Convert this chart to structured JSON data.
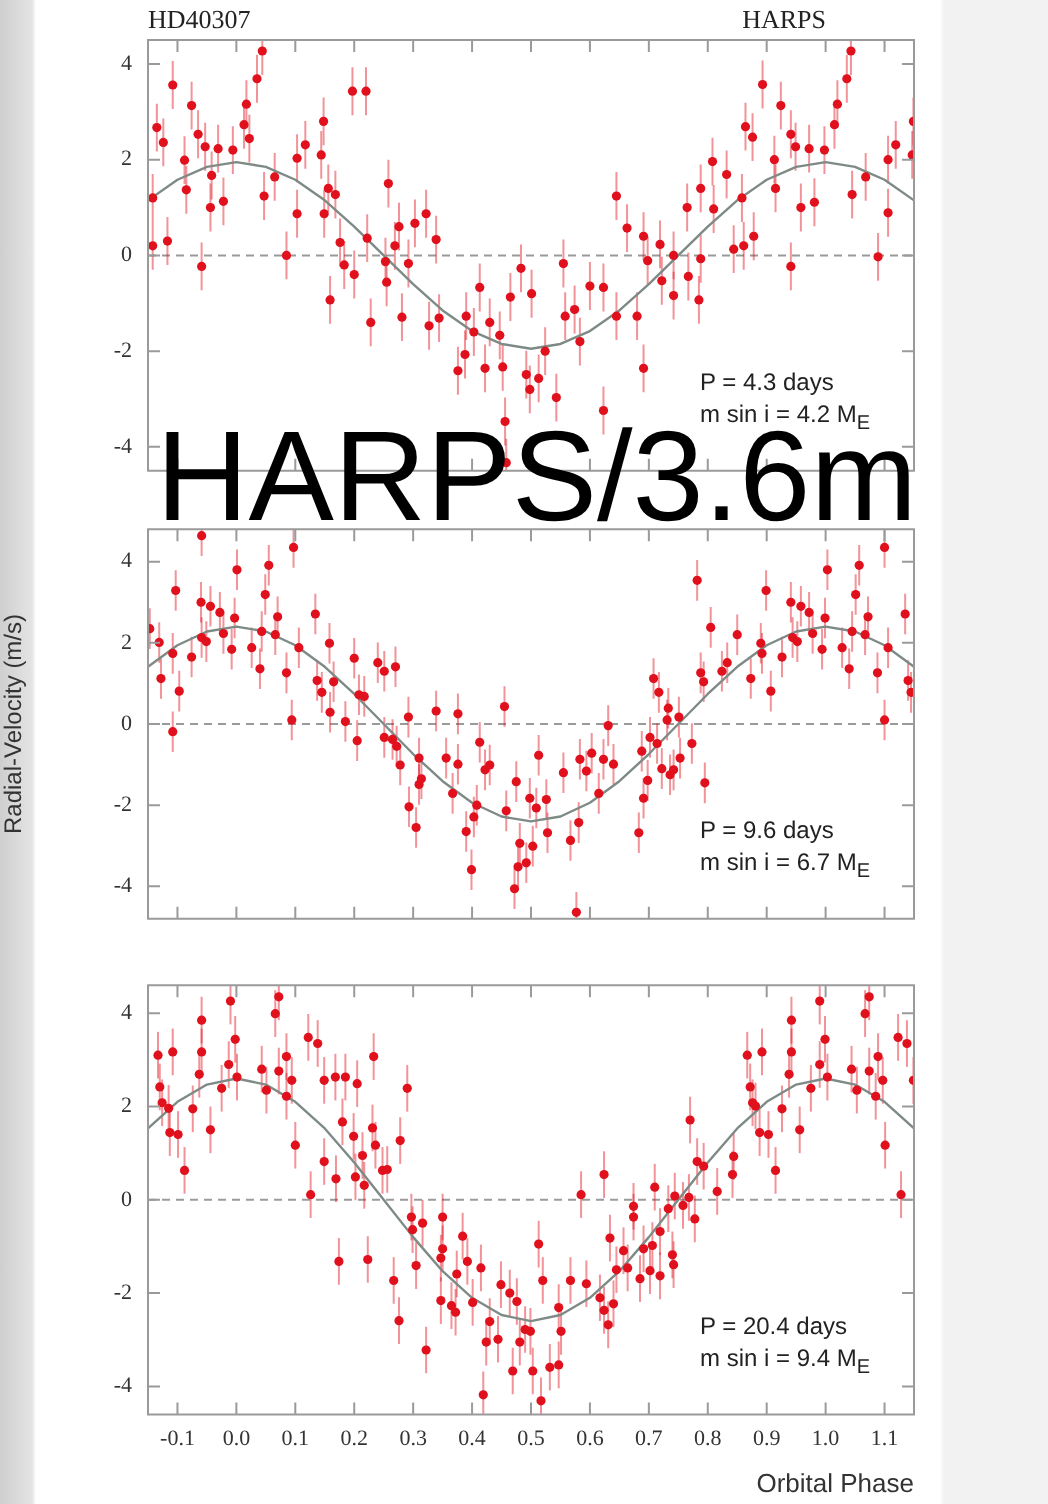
{
  "chart_data": [
    {
      "type": "scatter",
      "title": "HD40307",
      "subtitle": "HARPS",
      "annotations": [
        "P = 4.3 days",
        "m sin i = 4.2 M$_{E}$"
      ],
      "xlim": [
        -0.15,
        1.15
      ],
      "ylim": [
        -4.5,
        4.5
      ],
      "xticks": [
        -0.1,
        0,
        0.1,
        0.2,
        0.3,
        0.4,
        0.5,
        0.6,
        0.7,
        0.8,
        0.9,
        1,
        1.1
      ],
      "yticks": [
        -4,
        -2,
        0,
        2,
        4
      ],
      "tick_labels": "y",
      "ref_lines": [
        {
          "axis": "y",
          "value": 0,
          "color": "#9a9a9a",
          "line_style": "dashed"
        }
      ],
      "series": [
        {
          "type": "scatter",
          "color": "#e0101c",
          "marker": "circle",
          "x": [
            -0.142,
            -0.142,
            -0.135,
            -0.124,
            -0.117,
            -0.108,
            -0.088,
            -0.085,
            -0.076,
            -0.065,
            -0.059,
            -0.053,
            -0.044,
            -0.042,
            -0.031,
            -0.022,
            -0.006,
            0.013,
            0.017,
            0.022,
            0.035,
            0.044,
            0.047,
            0.065,
            0.085,
            0.103,
            0.103,
            0.117,
            0.144,
            0.148,
            0.149,
            0.156,
            0.159,
            0.168,
            0.176,
            0.183,
            0.197,
            0.2,
            0.22,
            0.222,
            0.228,
            0.253,
            0.255,
            0.258,
            0.269,
            0.276,
            0.281,
            0.292,
            0.303,
            0.322,
            0.327,
            0.339,
            0.344,
            0.376,
            0.388,
            0.39,
            0.403,
            0.413,
            0.422,
            0.43,
            0.447,
            0.452,
            0.456,
            0.458,
            0.465,
            0.483,
            0.492,
            0.498,
            0.501,
            0.513,
            0.524,
            0.543,
            0.555,
            0.558,
            0.574,
            0.583,
            0.6,
            0.623,
            0.623,
            0.645,
            0.645,
            0.663,
            0.68,
            0.691,
            0.691,
            0.698,
            0.719,
            0.722,
            0.742,
            0.742,
            0.765,
            0.767,
            0.785,
            0.788,
            0.788,
            0.808,
            0.81,
            0.832,
            0.844,
            0.858,
            0.861,
            0.864,
            0.876,
            0.878,
            0.893,
            0.913,
            0.915,
            0.924,
            0.941,
            0.941,
            0.949,
            0.958,
            0.972,
            0.981,
            0.998,
            1.015,
            1.02,
            1.036,
            1.043,
            1.045,
            1.068,
            1.089,
            1.106,
            1.106,
            1.119,
            1.147,
            1.149
          ],
          "values": [
            1.2,
            0.2,
            2.67,
            2.36,
            0.3,
            3.56,
            1.99,
            1.37,
            3.13,
            2.53,
            -0.23,
            2.27,
            1.0,
            1.67,
            2.23,
            1.13,
            2.2,
            2.73,
            3.16,
            2.44,
            3.69,
            4.27,
            1.24,
            1.64,
            0,
            0.87,
            2.03,
            2.31,
            2.1,
            2.8,
            0.87,
            1.4,
            -0.93,
            1.27,
            0.27,
            -0.2,
            3.43,
            -0.4,
            3.43,
            0.36,
            -1.4,
            -0.13,
            -0.56,
            1.5,
            0.2,
            0.6,
            -1.29,
            -0.17,
            0.67,
            0.87,
            -1.47,
            0.33,
            -1.31,
            -2.41,
            -2.07,
            -1.27,
            -1.6,
            -0.67,
            -2.36,
            -1.4,
            -1.67,
            -2.33,
            -3.47,
            -4.33,
            -0.87,
            -0.27,
            -2.49,
            -2.8,
            -0.8,
            -2.57,
            -2.0,
            -2.97,
            -0.17,
            -1.27,
            -1.13,
            -1.8,
            -0.64,
            -3.24,
            -0.67,
            -1.27,
            1.24,
            0.57,
            -1.27,
            -2.36,
            0.4,
            -0.11,
            0.23,
            -0.53,
            -0.84,
            0,
            1.0,
            -0.44,
            -0.93,
            1.4,
            -0.07,
            1.96,
            0.97,
            1.69,
            0.13,
            1.2,
            0.2,
            2.69,
            2.47,
            0.4,
            3.57,
            2.0,
            1.4,
            3.13,
            -0.23,
            2.53,
            2.27,
            1.0,
            2.23,
            1.11,
            2.2,
            2.73,
            3.16,
            3.69,
            4.27,
            1.27,
            1.64,
            -0.03,
            0.89,
            2.0,
            2.31,
            2.1,
            2.8
          ],
          "errors": [
            0.5,
            0.5,
            0.5,
            0.5,
            0.5,
            0.5,
            0.5,
            0.5,
            0.5,
            0.5,
            0.5,
            0.5,
            0.5,
            0.5,
            0.5,
            0.5,
            0.5,
            0.5,
            0.5,
            0.5,
            0.5,
            0.5,
            0.5,
            0.5,
            0.5,
            0.5,
            0.5,
            0.5,
            0.5,
            0.5,
            0.5,
            0.5,
            0.5,
            0.5,
            0.5,
            0.5,
            0.5,
            0.5,
            0.5,
            0.5,
            0.5,
            0.5,
            0.5,
            0.5,
            0.5,
            0.5,
            0.5,
            0.5,
            0.5,
            0.5,
            0.5,
            0.5,
            0.5,
            0.5,
            0.5,
            0.5,
            0.5,
            0.5,
            0.5,
            0.5,
            0.5,
            0.5,
            0.5,
            0.5,
            0.5,
            0.5,
            0.5,
            0.5,
            0.5,
            0.5,
            0.5,
            0.5,
            0.5,
            0.5,
            0.5,
            0.5,
            0.5,
            0.5,
            0.5,
            0.5,
            0.5,
            0.5,
            0.5,
            0.5,
            0.5,
            0.5,
            0.5,
            0.5,
            0.5,
            0.5,
            0.5,
            0.5,
            0.5,
            0.5,
            0.5,
            0.5,
            0.5,
            0.5,
            0.5,
            0.5,
            0.5,
            0.5,
            0.5,
            0.5,
            0.5,
            0.5,
            0.5,
            0.5,
            0.5,
            0.5,
            0.5,
            0.5,
            0.5,
            0.5,
            0.5,
            0.5,
            0.5,
            0.5,
            0.5,
            0.5,
            0.5,
            0.5,
            0.5,
            0.5,
            0.5,
            0.5,
            0.5
          ]
        },
        {
          "type": "line",
          "color": "#7d8a86",
          "x": [
            -0.15,
            -0.1,
            -0.05,
            0,
            0.05,
            0.1,
            0.15,
            0.2,
            0.25,
            0.3,
            0.35,
            0.4,
            0.45,
            0.5,
            0.55,
            0.6,
            0.65,
            0.7,
            0.75,
            0.8,
            0.85,
            0.9,
            0.95,
            1,
            1.05,
            1.1,
            1.15
          ],
          "values": [
            1.15,
            1.58,
            1.85,
            1.95,
            1.85,
            1.58,
            1.15,
            0.6,
            0,
            -0.6,
            -1.15,
            -1.58,
            -1.85,
            -1.95,
            -1.85,
            -1.58,
            -1.15,
            -0.6,
            0,
            0.6,
            1.15,
            1.58,
            1.85,
            1.95,
            1.85,
            1.58,
            1.15
          ]
        }
      ]
    },
    {
      "type": "scatter",
      "title": "HARPS/3.6m",
      "ylabel": "Radial-Velocity (m/s)",
      "annotations": [
        "P = 9.6 days",
        "m sin i = 6.7 M$_{E}$"
      ],
      "xlim": [
        -0.15,
        1.15
      ],
      "ylim": [
        -4.8,
        4.8
      ],
      "xticks": [
        -0.1,
        0,
        0.1,
        0.2,
        0.3,
        0.4,
        0.5,
        0.6,
        0.7,
        0.8,
        0.9,
        1,
        1.1
      ],
      "yticks": [
        -4,
        -2,
        0,
        2,
        4
      ],
      "tick_labels": "y",
      "ref_lines": [
        {
          "axis": "y",
          "value": 0,
          "color": "#9a9a9a",
          "line_style": "dashed"
        }
      ],
      "series": [
        {
          "type": "scatter",
          "color": "#e0101c",
          "marker": "circle",
          "x": [
            -0.147,
            -0.131,
            -0.128,
            -0.108,
            -0.108,
            -0.103,
            -0.097,
            -0.076,
            -0.06,
            -0.059,
            -0.059,
            -0.051,
            -0.044,
            -0.028,
            -0.022,
            -0.008,
            -0.003,
            0.001,
            0.026,
            0.04,
            0.043,
            0.049,
            0.055,
            0.066,
            0.07,
            0.085,
            0.094,
            0.097,
            0.106,
            0.134,
            0.137,
            0.145,
            0.158,
            0.159,
            0.165,
            0.185,
            0.2,
            0.205,
            0.208,
            0.217,
            0.24,
            0.251,
            0.251,
            0.265,
            0.27,
            0.272,
            0.278,
            0.292,
            0.293,
            0.305,
            0.31,
            0.31,
            0.314,
            0.339,
            0.356,
            0.367,
            0.376,
            0.376,
            0.39,
            0.399,
            0.403,
            0.408,
            0.413,
            0.422,
            0.43,
            0.455,
            0.458,
            0.472,
            0.475,
            0.478,
            0.481,
            0.492,
            0.498,
            0.503,
            0.509,
            0.513,
            0.526,
            0.528,
            0.555,
            0.567,
            0.577,
            0.581,
            0.583,
            0.594,
            0.603,
            0.615,
            0.623,
            0.631,
            0.64,
            0.683,
            0.688,
            0.691,
            0.698,
            0.702,
            0.708,
            0.714,
            0.717,
            0.722,
            0.731,
            0.733,
            0.736,
            0.742,
            0.751,
            0.753,
            0.773,
            0.782,
            0.788,
            0.793,
            0.795,
            0.805,
            0.824,
            0.833,
            0.85,
            0.873,
            0.89,
            0.892,
            0.899,
            0.907,
            0.926,
            0.941,
            0.944,
            0.952,
            0.958,
            0.972,
            0.978,
            0.994,
            0.999,
            1.003,
            1.028,
            1.04,
            1.045,
            1.051,
            1.057,
            1.067,
            1.072,
            1.088,
            1.1,
            1.1,
            1.106,
            1.135,
            1.14,
            1.145
          ],
          "values": [
            2.35,
            2.01,
            1.12,
            -0.19,
            1.74,
            3.29,
            0.81,
            1.65,
            3.0,
            4.64,
            2.13,
            2.03,
            2.9,
            2.75,
            2.23,
            1.84,
            2.61,
            3.8,
            1.88,
            1.36,
            2.28,
            3.19,
            3.91,
            2.2,
            2.64,
            1.26,
            0.1,
            4.35,
            1.88,
            2.71,
            1.07,
            0.78,
            1.99,
            0.29,
            1.04,
            0.06,
            1.62,
            -0.41,
            0.72,
            0.68,
            1.51,
            1.3,
            -0.33,
            -0.38,
            1.41,
            -0.55,
            -1.01,
            0.17,
            -2.04,
            -2.55,
            -0.84,
            -1.49,
            -1.35,
            0.32,
            -0.84,
            -1.71,
            0.25,
            -0.99,
            -2.65,
            -3.59,
            -2.29,
            -2.0,
            -0.45,
            -1.13,
            -1.01,
            0.43,
            -2.14,
            -4.06,
            -1.42,
            -3.52,
            -2.94,
            -3.42,
            -1.83,
            -3.01,
            -2.07,
            -0.77,
            -1.86,
            -2.68,
            -1.2,
            -2.87,
            -4.64,
            -2.43,
            -0.87,
            -1.16,
            -0.72,
            -1.71,
            -0.87,
            -0.04,
            -0.99,
            -2.68,
            -0.67,
            -1.83,
            -1.39,
            -0.33,
            1.12,
            -0.48,
            0.78,
            -1.1,
            0.1,
            0.39,
            -1.25,
            -1.13,
            0.17,
            -0.84,
            -0.48,
            3.54,
            1.26,
            1.04,
            -1.45,
            2.38,
            1.3,
            1.51,
            2.2,
            1.12,
            1.99,
            1.74,
            3.29,
            0.81,
            1.65,
            3.0,
            2.13,
            2.03,
            2.9,
            2.75,
            2.23,
            1.84,
            2.61,
            3.8,
            1.88,
            1.36,
            2.28,
            3.19,
            3.91,
            2.2,
            2.64,
            1.26,
            0.1,
            4.35,
            1.88,
            2.71,
            1.07,
            0.78
          ],
          "errors": [
            0.5,
            0.5,
            0.5,
            0.5,
            0.5,
            0.5,
            0.5,
            0.5,
            0.5,
            0.5,
            0.5,
            0.5,
            0.5,
            0.5,
            0.5,
            0.5,
            0.5,
            0.5,
            0.5,
            0.5,
            0.5,
            0.5,
            0.5,
            0.5,
            0.5,
            0.5,
            0.5,
            0.5,
            0.5,
            0.5,
            0.5,
            0.5,
            0.5,
            0.5,
            0.5,
            0.5,
            0.5,
            0.5,
            0.5,
            0.5,
            0.5,
            0.5,
            0.5,
            0.5,
            0.5,
            0.5,
            0.5,
            0.5,
            0.5,
            0.5,
            0.5,
            0.5,
            0.5,
            0.5,
            0.5,
            0.5,
            0.5,
            0.5,
            0.5,
            0.5,
            0.5,
            0.5,
            0.5,
            0.5,
            0.5,
            0.5,
            0.5,
            0.5,
            0.5,
            0.5,
            0.5,
            0.5,
            0.5,
            0.5,
            0.5,
            0.5,
            0.5,
            0.5,
            0.5,
            0.5,
            0.5,
            0.5,
            0.5,
            0.5,
            0.5,
            0.5,
            0.5,
            0.5,
            0.5,
            0.5,
            0.5,
            0.5,
            0.5,
            0.5,
            0.5,
            0.5,
            0.5,
            0.5,
            0.5,
            0.5,
            0.5,
            0.5,
            0.5,
            0.5,
            0.5,
            0.5,
            0.5,
            0.5,
            0.5,
            0.5,
            0.5,
            0.5,
            0.5,
            0.5,
            0.5,
            0.5,
            0.5,
            0.5,
            0.5,
            0.5,
            0.5,
            0.5,
            0.5,
            0.5,
            0.5,
            0.5,
            0.5,
            0.5,
            0.5,
            0.5,
            0.5,
            0.5,
            0.5,
            0.5,
            0.5,
            0.5,
            0.5,
            0.5,
            0.5,
            0.5,
            0.5,
            0.5
          ]
        },
        {
          "type": "line",
          "color": "#7d8a86",
          "x": [
            -0.15,
            -0.1,
            -0.05,
            0,
            0.05,
            0.1,
            0.15,
            0.2,
            0.25,
            0.3,
            0.35,
            0.4,
            0.45,
            0.5,
            0.55,
            0.6,
            0.65,
            0.7,
            0.75,
            0.8,
            0.85,
            0.9,
            0.95,
            1,
            1.05,
            1.1,
            1.15
          ],
          "values": [
            1.41,
            1.94,
            2.28,
            2.4,
            2.28,
            1.94,
            1.41,
            0.74,
            0,
            -0.74,
            -1.41,
            -1.94,
            -2.28,
            -2.4,
            -2.28,
            -1.94,
            -1.41,
            -0.74,
            0,
            0.74,
            1.41,
            1.94,
            2.28,
            2.4,
            2.28,
            1.94,
            1.41
          ]
        }
      ]
    },
    {
      "type": "scatter",
      "xlabel": "Orbital Phase",
      "annotations": [
        "P = 20.4 days",
        "m sin i = 9.4 M$_{E}$"
      ],
      "xlim": [
        -0.15,
        1.15
      ],
      "ylim": [
        -4.6,
        4.6
      ],
      "xticks": [
        -0.1,
        {
          "value": 0,
          "label": "0.0"
        },
        0.1,
        0.2,
        0.3,
        0.4,
        0.5,
        0.6,
        0.7,
        0.8,
        0.9,
        {
          "value": 1,
          "label": "1.0"
        },
        1.1
      ],
      "yticks": [
        -4,
        -2,
        0,
        2,
        4
      ],
      "ref_lines": [
        {
          "axis": "y",
          "value": 0,
          "color": "#9a9a9a",
          "line_style": "dashed"
        }
      ],
      "series": [
        {
          "type": "scatter",
          "color": "#e0101c",
          "marker": "circle",
          "x": [
            -0.133,
            -0.13,
            -0.126,
            -0.115,
            -0.113,
            -0.108,
            -0.099,
            -0.088,
            -0.074,
            -0.063,
            -0.059,
            -0.059,
            -0.044,
            -0.025,
            -0.013,
            -0.01,
            -0.002,
            0.001,
            0.043,
            0.051,
            0.066,
            0.072,
            0.072,
            0.085,
            0.085,
            0.094,
            0.1,
            0.122,
            0.126,
            0.138,
            0.149,
            0.149,
            0.168,
            0.169,
            0.174,
            0.18,
            0.185,
            0.199,
            0.202,
            0.205,
            0.214,
            0.217,
            0.223,
            0.231,
            0.233,
            0.236,
            0.248,
            0.256,
            0.267,
            0.276,
            0.278,
            0.29,
            0.297,
            0.299,
            0.305,
            0.316,
            0.322,
            0.347,
            0.347,
            0.35,
            0.35,
            0.365,
            0.372,
            0.374,
            0.384,
            0.392,
            0.401,
            0.415,
            0.419,
            0.424,
            0.43,
            0.444,
            0.449,
            0.464,
            0.469,
            0.476,
            0.481,
            0.49,
            0.499,
            0.503,
            0.513,
            0.517,
            0.52,
            0.532,
            0.547,
            0.547,
            0.551,
            0.567,
            0.585,
            0.594,
            0.617,
            0.624,
            0.624,
            0.631,
            0.634,
            0.64,
            0.645,
            0.657,
            0.664,
            0.674,
            0.674,
            0.685,
            0.691,
            0.702,
            0.706,
            0.71,
            0.719,
            0.719,
            0.733,
            0.74,
            0.742,
            0.744,
            0.758,
            0.768,
            0.77,
            0.778,
            0.782,
            0.793,
            0.816,
            0.842,
            0.844,
            0.867,
            0.872,
            0.876,
            0.881,
            0.888,
            0.892,
            0.903,
            0.915,
            0.926,
            0.938,
            0.942,
            0.942,
            0.956,
            0.975,
            0.99,
            0.99,
            0.999,
            1.003,
            1.044,
            1.053,
            1.067,
            1.074,
            1.074,
            1.085,
            1.089,
            1.097,
            1.101,
            1.123,
            1.128,
            1.138,
            1.149
          ],
          "values": [
            3.1,
            2.42,
            2.08,
            1.96,
            1.44,
            3.17,
            1.4,
            0.63,
            1.95,
            2.69,
            3.85,
            3.17,
            1.5,
            2.39,
            2.9,
            4.26,
            3.44,
            2.63,
            2.8,
            2.35,
            3.99,
            4.35,
            2.76,
            2.22,
            3.07,
            2.56,
            1.17,
            3.48,
            0.11,
            3.35,
            2.56,
            0.82,
            2.63,
            0.45,
            -1.32,
            1.67,
            2.63,
            1.36,
            0.49,
            2.49,
            0.95,
            0.31,
            -1.28,
            1.54,
            3.07,
            1.17,
            0.63,
            0.65,
            -1.73,
            -2.59,
            1.27,
            2.39,
            -0.37,
            -0.64,
            -1.41,
            -0.5,
            -3.22,
            -2.16,
            -1.25,
            -0.37,
            -1.05,
            -2.27,
            -2.41,
            -1.59,
            -0.78,
            -1.32,
            -2.2,
            -1.46,
            -4.18,
            -3.05,
            -2.61,
            -2.99,
            -1.82,
            -2.0,
            -3.67,
            -2.18,
            -3.05,
            -2.78,
            -2.82,
            -3.67,
            -0.95,
            -4.31,
            -1.73,
            -3.59,
            -2.31,
            -3.54,
            -2.82,
            -1.73,
            0.11,
            -1.8,
            -2.1,
            0.54,
            -2.37,
            -2.68,
            -0.82,
            -2.23,
            -1.5,
            -1.09,
            -1.46,
            -0.37,
            -0.14,
            -1.69,
            -1.05,
            -1.52,
            -0.98,
            0.27,
            -0.68,
            -1.63,
            -0.19,
            -1.18,
            -1.39,
            0.08,
            -0.12,
            0.05,
            1.71,
            -0.41,
            0.82,
            0.72,
            0.18,
            0.54,
            0.93,
            3.1,
            2.42,
            2.08,
            2.01,
            1.44,
            3.17,
            1.4,
            0.63,
            1.95,
            2.69,
            3.85,
            3.17,
            1.5,
            2.39,
            2.9,
            4.26,
            3.44,
            2.63,
            2.8,
            2.35,
            3.99,
            4.35,
            2.76,
            2.22,
            3.07,
            2.56,
            1.17,
            3.48,
            0.11,
            3.35,
            2.56
          ],
          "errors": [
            0.5,
            0.5,
            0.5,
            0.5,
            0.5,
            0.5,
            0.5,
            0.5,
            0.5,
            0.5,
            0.5,
            0.5,
            0.5,
            0.5,
            0.5,
            0.5,
            0.5,
            0.5,
            0.5,
            0.5,
            0.5,
            0.5,
            0.5,
            0.5,
            0.5,
            0.5,
            0.5,
            0.5,
            0.5,
            0.5,
            0.5,
            0.5,
            0.5,
            0.5,
            0.5,
            0.5,
            0.5,
            0.5,
            0.5,
            0.5,
            0.5,
            0.5,
            0.5,
            0.5,
            0.5,
            0.5,
            0.5,
            0.5,
            0.5,
            0.5,
            0.5,
            0.5,
            0.5,
            0.5,
            0.5,
            0.5,
            0.5,
            0.5,
            0.5,
            0.5,
            0.5,
            0.5,
            0.5,
            0.5,
            0.5,
            0.5,
            0.5,
            0.5,
            0.5,
            0.5,
            0.5,
            0.5,
            0.5,
            0.5,
            0.5,
            0.5,
            0.5,
            0.5,
            0.5,
            0.5,
            0.5,
            0.5,
            0.5,
            0.5,
            0.5,
            0.5,
            0.5,
            0.5,
            0.5,
            0.5,
            0.5,
            0.5,
            0.5,
            0.5,
            0.5,
            0.5,
            0.5,
            0.5,
            0.5,
            0.5,
            0.5,
            0.5,
            0.5,
            0.5,
            0.5,
            0.5,
            0.5,
            0.5,
            0.5,
            0.5,
            0.5,
            0.5,
            0.5,
            0.5,
            0.5,
            0.5,
            0.5,
            0.5,
            0.5,
            0.5,
            0.5,
            0.5,
            0.5,
            0.5,
            0.5,
            0.5,
            0.5,
            0.5,
            0.5,
            0.5,
            0.5,
            0.5,
            0.5,
            0.5,
            0.5,
            0.5,
            0.5,
            0.5,
            0.5,
            0.5,
            0.5,
            0.5,
            0.5,
            0.5,
            0.5,
            0.5,
            0.5,
            0.5,
            0.5,
            0.5,
            0.5,
            0.5
          ]
        },
        {
          "type": "line",
          "color": "#7d8a86",
          "x": [
            -0.15,
            -0.1,
            -0.05,
            0,
            0.05,
            0.1,
            0.15,
            0.2,
            0.25,
            0.3,
            0.35,
            0.4,
            0.45,
            0.5,
            0.55,
            0.6,
            0.65,
            0.7,
            0.75,
            0.8,
            0.85,
            0.9,
            0.95,
            1,
            1.05,
            1.1,
            1.15
          ],
          "values": [
            1.53,
            2.1,
            2.47,
            2.6,
            2.47,
            2.1,
            1.53,
            0.8,
            0,
            -0.8,
            -1.53,
            -2.1,
            -2.47,
            -2.6,
            -2.47,
            -2.1,
            -1.53,
            -0.8,
            0,
            0.8,
            1.53,
            2.1,
            2.47,
            2.6,
            2.47,
            2.1,
            1.53
          ]
        }
      ]
    }
  ]
}
